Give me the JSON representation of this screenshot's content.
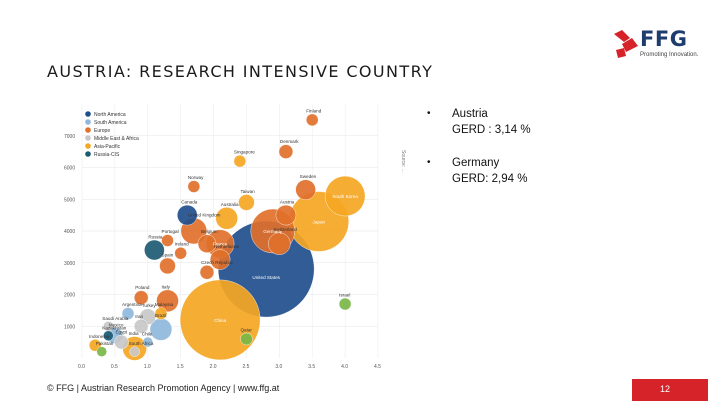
{
  "logo": {
    "name": "FFG",
    "subtitle": "Promoting Innovation.",
    "icon": "ffg-logo-icon",
    "color": "#d6232a"
  },
  "slide": {
    "title": "AUSTRIA: RESEARCH INTENSIVE COUNTRY",
    "bullets": [
      {
        "marker": "•",
        "line1": "Austria",
        "line2": "GERD : 3,14 %"
      },
      {
        "marker": "•",
        "line1": "Germany",
        "line2": "GERD: 2,94 %"
      }
    ],
    "footer": "© FFG | Austrian Research Promotion Agency | www.ffg.at",
    "page_number": "12",
    "source_note": "Source: ..."
  },
  "colors": {
    "accent": "#d6232a",
    "north_america": "#1f4e8c",
    "europe": "#e0702a",
    "asia": "#f5a623",
    "middle_east": "#c8c8c8",
    "south_america": "#8fb8dc",
    "russia": "#1c5a73",
    "other": "#7ab648"
  },
  "chart_data": {
    "type": "scatter",
    "title": "",
    "xlabel": "",
    "ylabel": "",
    "xlim": [
      0,
      4.5
    ],
    "ylim": [
      0,
      8000
    ],
    "x_ticks": [
      "0.0",
      "0.5",
      "1.0",
      "1.5",
      "2.0",
      "2.5",
      "3.0",
      "3.5",
      "4.0",
      "4.5"
    ],
    "y_ticks": [
      "1000",
      "2000",
      "3000",
      "4000",
      "5000",
      "6000",
      "7000"
    ],
    "legend_position": "top-left",
    "legend": [
      {
        "label": "North America",
        "color": "#1f4e8c"
      },
      {
        "label": "South America",
        "color": "#8fb8dc"
      },
      {
        "label": "Europe",
        "color": "#e0702a"
      },
      {
        "label": "Middle East & Africa",
        "color": "#c8c8c8"
      },
      {
        "label": "Asia-Pacific",
        "color": "#f5a623"
      },
      {
        "label": "Russia-CIS",
        "color": "#1c5a73"
      }
    ],
    "points": [
      {
        "label": "Finland",
        "x": 3.5,
        "y": 7500,
        "size": 6,
        "color": "#e0702a"
      },
      {
        "label": "Denmark",
        "x": 3.1,
        "y": 6500,
        "size": 7,
        "color": "#e0702a"
      },
      {
        "label": "Singapore",
        "x": 2.4,
        "y": 6200,
        "size": 6,
        "color": "#f5a623"
      },
      {
        "label": "Norway",
        "x": 1.7,
        "y": 5400,
        "size": 6,
        "color": "#e0702a"
      },
      {
        "label": "Sweden",
        "x": 3.4,
        "y": 5300,
        "size": 10,
        "color": "#e0702a"
      },
      {
        "label": "South Korea",
        "x": 4.0,
        "y": 5100,
        "size": 20,
        "color": "#f5a623"
      },
      {
        "label": "Japan",
        "x": 3.6,
        "y": 4300,
        "size": 30,
        "color": "#f5a623"
      },
      {
        "label": "Taiwan",
        "x": 2.5,
        "y": 4900,
        "size": 8,
        "color": "#f5a623"
      },
      {
        "label": "Canada",
        "x": 1.6,
        "y": 4500,
        "size": 10,
        "color": "#1f4e8c"
      },
      {
        "label": "Australia",
        "x": 2.2,
        "y": 4400,
        "size": 11,
        "color": "#f5a623"
      },
      {
        "label": "Austria",
        "x": 3.1,
        "y": 4500,
        "size": 10,
        "color": "#e0702a"
      },
      {
        "label": "United Kingdom",
        "x": 1.7,
        "y": 4000,
        "size": 13,
        "color": "#e0702a"
      },
      {
        "label": "Germany",
        "x": 2.9,
        "y": 4000,
        "size": 22,
        "color": "#e0702a"
      },
      {
        "label": "Portugal",
        "x": 1.3,
        "y": 3700,
        "size": 6,
        "color": "#e0702a"
      },
      {
        "label": "Belgium",
        "x": 1.9,
        "y": 3600,
        "size": 9,
        "color": "#e0702a"
      },
      {
        "label": "France",
        "x": 2.1,
        "y": 3600,
        "size": 14,
        "color": "#e0702a"
      },
      {
        "label": "Switzerland",
        "x": 3.0,
        "y": 3600,
        "size": 11,
        "color": "#e0702a"
      },
      {
        "label": "Russia",
        "x": 1.1,
        "y": 3400,
        "size": 10,
        "color": "#1c5a73"
      },
      {
        "label": "Ireland",
        "x": 1.5,
        "y": 3300,
        "size": 6,
        "color": "#e0702a"
      },
      {
        "label": "Netherlands",
        "x": 2.1,
        "y": 3100,
        "size": 10,
        "color": "#e0702a"
      },
      {
        "label": "Spain",
        "x": 1.3,
        "y": 2900,
        "size": 8,
        "color": "#e0702a"
      },
      {
        "label": "Czech Republic",
        "x": 1.9,
        "y": 2700,
        "size": 7,
        "color": "#e0702a"
      },
      {
        "label": "United States",
        "x": 2.8,
        "y": 2800,
        "size": 48,
        "color": "#1f4e8c"
      },
      {
        "label": "Israel",
        "x": 4.0,
        "y": 1700,
        "size": 6,
        "color": "#7ab648"
      },
      {
        "label": "Poland",
        "x": 0.9,
        "y": 1900,
        "size": 7,
        "color": "#e0702a"
      },
      {
        "label": "Italy",
        "x": 1.3,
        "y": 1800,
        "size": 11,
        "color": "#e0702a"
      },
      {
        "label": "Argentina",
        "x": 0.7,
        "y": 1400,
        "size": 6,
        "color": "#8fb8dc"
      },
      {
        "label": "Malaysia",
        "x": 1.2,
        "y": 1400,
        "size": 6,
        "color": "#f5a623"
      },
      {
        "label": "Turkey",
        "x": 1.0,
        "y": 1300,
        "size": 8,
        "color": "#c8c8c8"
      },
      {
        "label": "China",
        "x": 2.1,
        "y": 1200,
        "size": 40,
        "color": "#f5a623"
      },
      {
        "label": "Saudi Arabia",
        "x": 0.4,
        "y": 1000,
        "size": 5,
        "color": "#c8c8c8"
      },
      {
        "label": "Iran",
        "x": 0.9,
        "y": 1000,
        "size": 7,
        "color": "#c8c8c8"
      },
      {
        "label": "Brazil",
        "x": 1.2,
        "y": 900,
        "size": 11,
        "color": "#8fb8dc"
      },
      {
        "label": "Mexico",
        "x": 0.5,
        "y": 700,
        "size": 8,
        "color": "#8fb8dc"
      },
      {
        "label": "Kazakhstan",
        "x": 0.4,
        "y": 700,
        "size": 5,
        "color": "#1c5a73"
      },
      {
        "label": "Egypt",
        "x": 0.6,
        "y": 500,
        "size": 7,
        "color": "#c8c8c8"
      },
      {
        "label": "Indonesia",
        "x": 0.2,
        "y": 400,
        "size": 6,
        "color": "#f5a623"
      },
      {
        "label": "India",
        "x": 0.8,
        "y": 300,
        "size": 12,
        "color": "#f5a623"
      },
      {
        "label": "Chile",
        "x": 1.0,
        "y": 500,
        "size": 5,
        "color": "#8fb8dc"
      },
      {
        "label": "Qatar",
        "x": 2.5,
        "y": 600,
        "size": 6,
        "color": "#7ab648"
      },
      {
        "label": "Pakistan",
        "x": 0.3,
        "y": 200,
        "size": 5,
        "color": "#7ab648"
      },
      {
        "label": "South Africa",
        "x": 0.8,
        "y": 200,
        "size": 5,
        "color": "#c8c8c8"
      }
    ]
  }
}
